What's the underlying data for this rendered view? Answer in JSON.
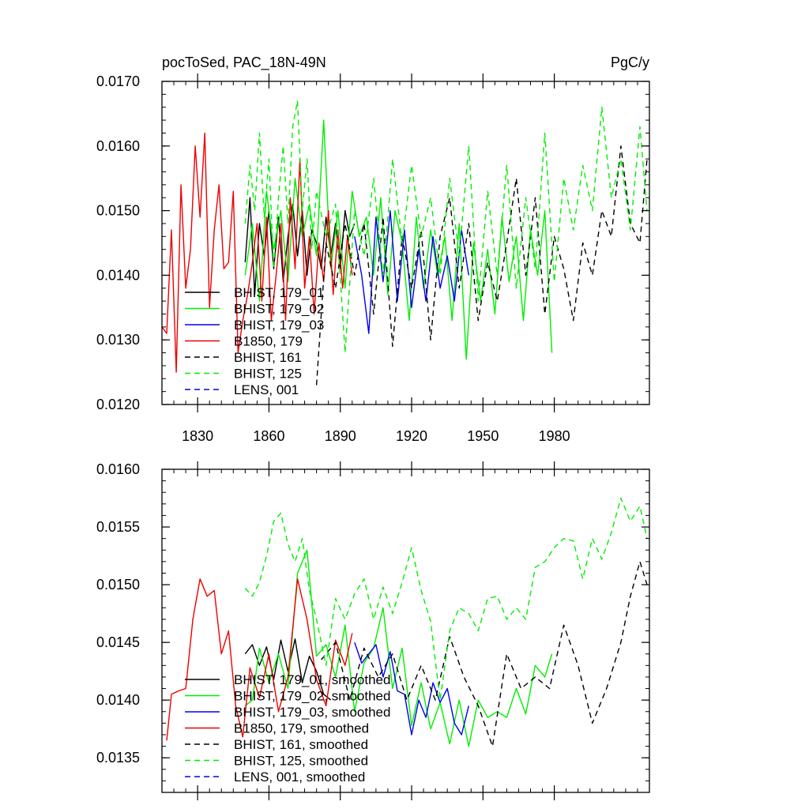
{
  "chart_data": [
    {
      "type": "line",
      "title_left": "pocToSed, PAC_18N-49N",
      "title_right": "PgC/y",
      "xlabel": "",
      "ylabel": "",
      "xlim": [
        1815,
        2020
      ],
      "ylim": [
        0.012,
        0.017
      ],
      "x_ticks": [
        1830,
        1860,
        1890,
        1920,
        1950,
        1980
      ],
      "x_tick_labels": [
        "1830",
        "1860",
        "1890",
        "1920",
        "1950",
        "1980"
      ],
      "y_ticks": [
        0.012,
        0.013,
        0.014,
        0.015,
        0.016,
        0.017
      ],
      "y_tick_labels": [
        "0.0120",
        "0.0130",
        "0.0140",
        "0.0150",
        "0.0160",
        "0.0170"
      ],
      "legend": [
        "BHIST, 179_01",
        "BHIST, 179_02",
        "BHIST, 179_03",
        "B1850, 179",
        "BHIST, 161",
        "BHIST, 125",
        "LENS, 001"
      ],
      "series": [
        {
          "name": "BHIST, 179_01",
          "color": "#000000",
          "dash": "solid",
          "x": [
            1850,
            1852,
            1854,
            1856,
            1858,
            1860,
            1862,
            1864,
            1866,
            1868,
            1870,
            1872,
            1874,
            1876,
            1878,
            1880,
            1882,
            1884,
            1886,
            1888,
            1890,
            1892,
            1894,
            1896
          ],
          "y": [
            0.0142,
            0.0152,
            0.0137,
            0.0148,
            0.0143,
            0.015,
            0.0141,
            0.0149,
            0.0139,
            0.0146,
            0.0151,
            0.0143,
            0.015,
            0.014,
            0.0147,
            0.0145,
            0.0141,
            0.0149,
            0.0143,
            0.0148,
            0.0141,
            0.015,
            0.0146,
            0.0148
          ]
        },
        {
          "name": "BHIST, 179_02",
          "color": "#00ee00",
          "dash": "solid",
          "x": [
            1850,
            1853,
            1856,
            1859,
            1862,
            1865,
            1868,
            1871,
            1874,
            1877,
            1880,
            1883,
            1886,
            1889,
            1892,
            1895,
            1898,
            1901,
            1904,
            1907,
            1910,
            1913,
            1916,
            1919,
            1922,
            1925,
            1928,
            1931,
            1934,
            1937,
            1940,
            1943,
            1946,
            1949,
            1952,
            1955,
            1958,
            1961,
            1964,
            1967,
            1970,
            1973,
            1976,
            1979
          ],
          "y": [
            0.014,
            0.0148,
            0.0136,
            0.0153,
            0.0144,
            0.015,
            0.0139,
            0.0155,
            0.0146,
            0.0151,
            0.0143,
            0.0164,
            0.0141,
            0.015,
            0.0138,
            0.0153,
            0.0146,
            0.0149,
            0.014,
            0.0152,
            0.0137,
            0.015,
            0.0145,
            0.0133,
            0.0149,
            0.0138,
            0.0147,
            0.014,
            0.0146,
            0.0133,
            0.0148,
            0.0127,
            0.0145,
            0.0136,
            0.0144,
            0.0134,
            0.0149,
            0.0139,
            0.0146,
            0.0133,
            0.0147,
            0.014,
            0.015,
            0.0128
          ]
        },
        {
          "name": "BHIST, 179_03",
          "color": "#0000ee",
          "dash": "solid",
          "x": [
            1896,
            1899,
            1902,
            1905,
            1908,
            1911,
            1914,
            1917,
            1920,
            1923,
            1926,
            1929,
            1932,
            1935,
            1938,
            1941,
            1944
          ],
          "y": [
            0.0146,
            0.014,
            0.0131,
            0.0149,
            0.0139,
            0.015,
            0.0136,
            0.0147,
            0.0135,
            0.0144,
            0.0136,
            0.0146,
            0.0138,
            0.0143,
            0.0136,
            0.0147,
            0.014
          ]
        },
        {
          "name": "B1850, 179",
          "color": "#ee0000",
          "dash": "solid",
          "x": [
            1815,
            1817,
            1819,
            1821,
            1823,
            1825,
            1827,
            1829,
            1831,
            1833,
            1835,
            1837,
            1839,
            1841,
            1843,
            1845,
            1847,
            1849,
            1851,
            1853,
            1855,
            1857,
            1859,
            1861,
            1863,
            1865,
            1867,
            1869,
            1871,
            1873,
            1875,
            1877,
            1879,
            1881,
            1883,
            1885,
            1887,
            1889,
            1891,
            1893,
            1895
          ],
          "y": [
            0.0132,
            0.0131,
            0.0147,
            0.0125,
            0.0154,
            0.0138,
            0.0144,
            0.016,
            0.0149,
            0.0162,
            0.0135,
            0.0147,
            0.0154,
            0.0141,
            0.0142,
            0.0153,
            0.0128,
            0.0133,
            0.0137,
            0.0142,
            0.0148,
            0.0136,
            0.0149,
            0.0133,
            0.014,
            0.0148,
            0.0133,
            0.0152,
            0.0141,
            0.0158,
            0.0138,
            0.0146,
            0.0134,
            0.0145,
            0.0139,
            0.015,
            0.0137,
            0.0147,
            0.0138,
            0.0146,
            0.014
          ]
        },
        {
          "name": "BHIST, 161",
          "color": "#000000",
          "dash": "dashed",
          "x": [
            1880,
            1884,
            1888,
            1892,
            1896,
            1900,
            1904,
            1908,
            1912,
            1916,
            1920,
            1924,
            1928,
            1932,
            1936,
            1940,
            1944,
            1948,
            1952,
            1956,
            1960,
            1964,
            1968,
            1972,
            1976,
            1980,
            1984,
            1988,
            1992,
            1996,
            2000,
            2004,
            2008,
            2012,
            2016,
            2019
          ],
          "y": [
            0.0123,
            0.0145,
            0.0138,
            0.0148,
            0.014,
            0.0148,
            0.0134,
            0.0149,
            0.0129,
            0.0146,
            0.0138,
            0.0147,
            0.013,
            0.0146,
            0.0152,
            0.0138,
            0.0148,
            0.0133,
            0.0142,
            0.0136,
            0.0145,
            0.0155,
            0.014,
            0.0152,
            0.0134,
            0.0146,
            0.0141,
            0.0133,
            0.0145,
            0.014,
            0.015,
            0.0146,
            0.016,
            0.0148,
            0.0145,
            0.0158
          ]
        },
        {
          "name": "BHIST, 125",
          "color": "#00ee00",
          "dash": "dashed",
          "x": [
            1850,
            1852,
            1854,
            1856,
            1858,
            1860,
            1862,
            1864,
            1866,
            1868,
            1870,
            1872,
            1874,
            1876,
            1878,
            1880,
            1884,
            1888,
            1892,
            1896,
            1900,
            1904,
            1908,
            1912,
            1916,
            1920,
            1924,
            1928,
            1932,
            1936,
            1940,
            1944,
            1948,
            1952,
            1956,
            1960,
            1964,
            1968,
            1972,
            1976,
            1980,
            1984,
            1988,
            1992,
            1996,
            2000,
            2004,
            2008,
            2012,
            2016,
            2019
          ],
          "y": [
            0.0148,
            0.0157,
            0.015,
            0.0162,
            0.0149,
            0.0158,
            0.0141,
            0.0152,
            0.016,
            0.0148,
            0.0163,
            0.0167,
            0.015,
            0.0158,
            0.0144,
            0.0153,
            0.0146,
            0.0151,
            0.0128,
            0.015,
            0.0143,
            0.0155,
            0.014,
            0.0158,
            0.0145,
            0.0157,
            0.0146,
            0.0152,
            0.014,
            0.0155,
            0.0143,
            0.016,
            0.0136,
            0.0153,
            0.014,
            0.0157,
            0.0138,
            0.0152,
            0.0141,
            0.0162,
            0.0139,
            0.0155,
            0.0147,
            0.0157,
            0.015,
            0.0166,
            0.0152,
            0.0158,
            0.0147,
            0.0163,
            0.015
          ]
        }
      ]
    },
    {
      "type": "line",
      "xlim": [
        1815,
        2020
      ],
      "ylim": [
        0.0132,
        0.016
      ],
      "y_ticks": [
        0.0135,
        0.014,
        0.0145,
        0.015,
        0.0155,
        0.016
      ],
      "y_tick_labels": [
        "0.0135",
        "0.0140",
        "0.0145",
        "0.0150",
        "0.0155",
        "0.0160"
      ],
      "x_ticks": [
        1830,
        1860,
        1890,
        1920,
        1950,
        1980
      ],
      "legend": [
        "BHIST, 179_01, smoothed",
        "BHIST, 179_02, smoothed",
        "BHIST, 179_03, smoothed",
        "B1850, 179, smoothed",
        "BHIST, 161, smoothed",
        "BHIST, 125, smoothed",
        "LENS, 001, smoothed"
      ],
      "series": [
        {
          "name": "BHIST, 179_01, smoothed",
          "color": "#000000",
          "dash": "solid",
          "x": [
            1850,
            1853,
            1856,
            1859,
            1862,
            1865,
            1868,
            1871,
            1874,
            1877,
            1880,
            1883,
            1886
          ],
          "y": [
            0.0144,
            0.01448,
            0.0143,
            0.01446,
            0.01418,
            0.01452,
            0.01425,
            0.01453,
            0.01415,
            0.01438,
            0.01425,
            0.01405,
            0.014
          ]
        },
        {
          "name": "BHIST, 179_02, smoothed",
          "color": "#00ee00",
          "dash": "solid",
          "x": [
            1850,
            1853,
            1856,
            1860,
            1864,
            1868,
            1872,
            1876,
            1880,
            1884,
            1888,
            1892,
            1896,
            1900,
            1904,
            1908,
            1912,
            1916,
            1920,
            1924,
            1928,
            1932,
            1936,
            1940,
            1944,
            1948,
            1952,
            1956,
            1960,
            1964,
            1968,
            1972,
            1976,
            1979
          ],
          "y": [
            0.01395,
            0.014,
            0.01445,
            0.01415,
            0.0144,
            0.0141,
            0.0151,
            0.0153,
            0.01438,
            0.01448,
            0.0142,
            0.01465,
            0.0139,
            0.01432,
            0.01445,
            0.0148,
            0.0141,
            0.01445,
            0.01378,
            0.01415,
            0.01375,
            0.01398,
            0.01362,
            0.014,
            0.0136,
            0.014,
            0.01385,
            0.0139,
            0.01385,
            0.0141,
            0.01388,
            0.0143,
            0.0142,
            0.0144
          ]
        },
        {
          "name": "BHIST, 179_03, smoothed",
          "color": "#0000ee",
          "dash": "solid",
          "x": [
            1896,
            1899,
            1902,
            1905,
            1908,
            1911,
            1914,
            1917,
            1920,
            1923,
            1926,
            1929,
            1932,
            1935,
            1938,
            1941,
            1944
          ],
          "y": [
            0.0145,
            0.01432,
            0.0144,
            0.01448,
            0.0142,
            0.01442,
            0.01408,
            0.01405,
            0.0137,
            0.014,
            0.01385,
            0.01415,
            0.01398,
            0.0141,
            0.0138,
            0.0137,
            0.01395
          ]
        },
        {
          "name": "B1850, 179, smoothed",
          "color": "#ee0000",
          "dash": "solid",
          "x": [
            1817,
            1819,
            1822,
            1825,
            1828,
            1831,
            1834,
            1837,
            1840,
            1843,
            1846,
            1849,
            1852,
            1856,
            1860,
            1864,
            1868,
            1872,
            1876,
            1880,
            1884,
            1888,
            1892,
            1895
          ],
          "y": [
            0.01365,
            0.01405,
            0.01408,
            0.0141,
            0.0147,
            0.01505,
            0.0149,
            0.01495,
            0.0144,
            0.0146,
            0.01395,
            0.01368,
            0.01428,
            0.01402,
            0.0144,
            0.0139,
            0.0142,
            0.01505,
            0.0147,
            0.01418,
            0.01395,
            0.01452,
            0.0143,
            0.01458
          ]
        },
        {
          "name": "BHIST, 161, smoothed",
          "color": "#000000",
          "dash": "dashed",
          "x": [
            1882,
            1888,
            1894,
            1900,
            1906,
            1912,
            1918,
            1924,
            1930,
            1936,
            1942,
            1948,
            1954,
            1960,
            1966,
            1972,
            1978,
            1984,
            1990,
            1996,
            2002,
            2008,
            2012,
            2016,
            2019
          ],
          "y": [
            0.01435,
            0.0145,
            0.014,
            0.01445,
            0.0142,
            0.0144,
            0.014,
            0.0143,
            0.014,
            0.01455,
            0.0142,
            0.01395,
            0.0136,
            0.0144,
            0.0141,
            0.0142,
            0.0141,
            0.01465,
            0.0143,
            0.0138,
            0.0141,
            0.0145,
            0.0149,
            0.0152,
            0.015
          ]
        },
        {
          "name": "BHIST, 125, smoothed",
          "color": "#00ee00",
          "dash": "dashed",
          "x": [
            1850,
            1853,
            1856,
            1859,
            1862,
            1865,
            1868,
            1871,
            1874,
            1877,
            1880,
            1884,
            1888,
            1892,
            1896,
            1900,
            1904,
            1908,
            1912,
            1916,
            1920,
            1924,
            1928,
            1932,
            1936,
            1940,
            1944,
            1948,
            1952,
            1956,
            1960,
            1964,
            1968,
            1972,
            1976,
            1980,
            1984,
            1988,
            1992,
            1996,
            2000,
            2004,
            2008,
            2012,
            2016,
            2019
          ],
          "y": [
            0.01497,
            0.0149,
            0.01502,
            0.01525,
            0.01555,
            0.01562,
            0.01535,
            0.0152,
            0.0154,
            0.01495,
            0.0147,
            0.0143,
            0.01488,
            0.0147,
            0.01492,
            0.01505,
            0.0147,
            0.01498,
            0.01475,
            0.01502,
            0.01532,
            0.01495,
            0.01468,
            0.014,
            0.0146,
            0.0148,
            0.01475,
            0.0146,
            0.01488,
            0.0149,
            0.0147,
            0.0148,
            0.0147,
            0.01515,
            0.0152,
            0.01532,
            0.0154,
            0.01538,
            0.01505,
            0.0154,
            0.01522,
            0.01545,
            0.01575,
            0.01555,
            0.01568,
            0.0154
          ]
        }
      ]
    }
  ]
}
